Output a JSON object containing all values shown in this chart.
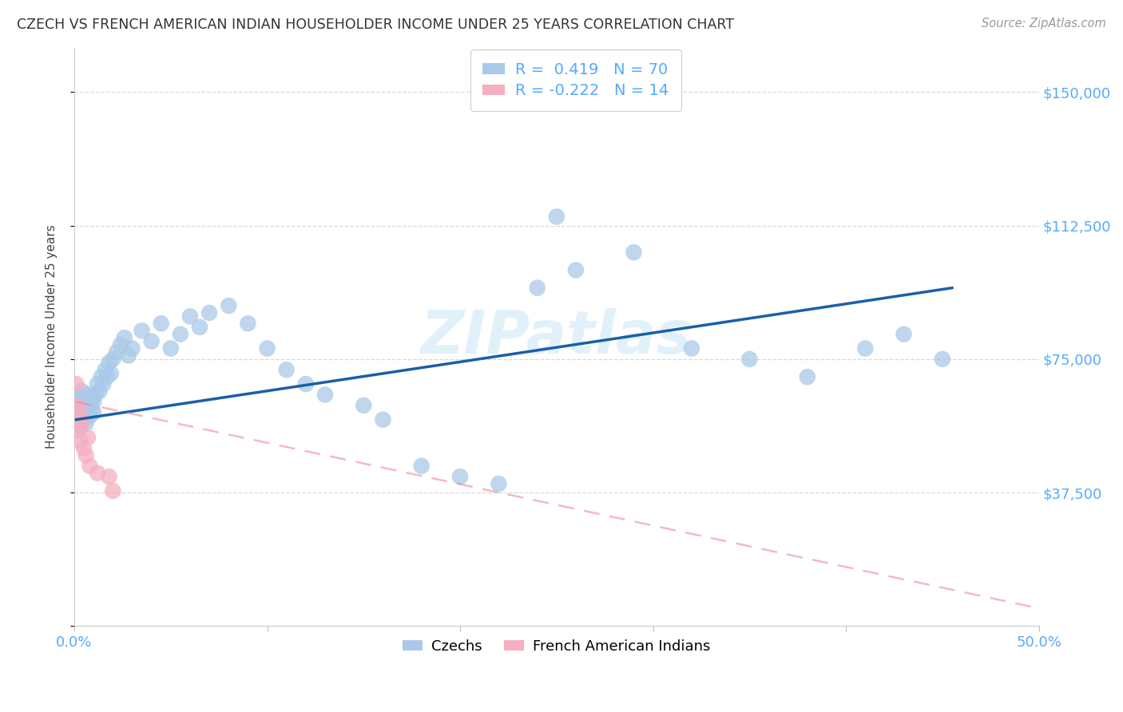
{
  "title": "CZECH VS FRENCH AMERICAN INDIAN HOUSEHOLDER INCOME UNDER 25 YEARS CORRELATION CHART",
  "source": "Source: ZipAtlas.com",
  "ylabel": "Householder Income Under 25 years",
  "xlim": [
    0.0,
    0.5
  ],
  "ylim": [
    0,
    162500
  ],
  "yticks": [
    0,
    37500,
    75000,
    112500,
    150000
  ],
  "ytick_labels": [
    "",
    "$37,500",
    "$75,000",
    "$112,500",
    "$150,000"
  ],
  "xticks": [
    0.0,
    0.1,
    0.2,
    0.3,
    0.4,
    0.5
  ],
  "xtick_labels": [
    "0.0%",
    "",
    "",
    "",
    "",
    "50.0%"
  ],
  "blue_R": 0.419,
  "blue_N": 70,
  "pink_R": -0.222,
  "pink_N": 14,
  "blue_color": "#aac9e8",
  "pink_color": "#f5afc0",
  "blue_line_color": "#1a5fa8",
  "pink_line_color": "#e8809a",
  "watermark": "ZIPatlas",
  "background_color": "#ffffff",
  "grid_color": "#d8d8d8",
  "czechs_x": [
    0.001,
    0.001,
    0.001,
    0.002,
    0.002,
    0.002,
    0.003,
    0.003,
    0.003,
    0.004,
    0.004,
    0.004,
    0.005,
    0.005,
    0.005,
    0.006,
    0.006,
    0.006,
    0.007,
    0.007,
    0.008,
    0.008,
    0.009,
    0.009,
    0.01,
    0.01,
    0.011,
    0.012,
    0.013,
    0.014,
    0.015,
    0.016,
    0.017,
    0.018,
    0.019,
    0.02,
    0.022,
    0.024,
    0.026,
    0.028,
    0.03,
    0.035,
    0.04,
    0.045,
    0.05,
    0.055,
    0.06,
    0.065,
    0.07,
    0.08,
    0.09,
    0.1,
    0.11,
    0.12,
    0.13,
    0.15,
    0.16,
    0.18,
    0.2,
    0.22,
    0.24,
    0.26,
    0.29,
    0.32,
    0.35,
    0.38,
    0.41,
    0.43,
    0.45,
    0.25
  ],
  "czechs_y": [
    58000,
    62000,
    65000,
    57000,
    60000,
    63000,
    56000,
    61000,
    64000,
    59000,
    62000,
    66000,
    58000,
    61000,
    63000,
    57000,
    60000,
    64000,
    62000,
    65000,
    59000,
    63000,
    61000,
    64000,
    60000,
    63000,
    65000,
    68000,
    66000,
    70000,
    68000,
    72000,
    70000,
    74000,
    71000,
    75000,
    77000,
    79000,
    81000,
    76000,
    78000,
    83000,
    80000,
    85000,
    78000,
    82000,
    87000,
    84000,
    88000,
    90000,
    85000,
    78000,
    72000,
    68000,
    65000,
    62000,
    58000,
    45000,
    42000,
    40000,
    95000,
    100000,
    105000,
    78000,
    75000,
    70000,
    78000,
    82000,
    75000,
    115000
  ],
  "french_x": [
    0.001,
    0.001,
    0.002,
    0.002,
    0.003,
    0.003,
    0.004,
    0.005,
    0.006,
    0.007,
    0.008,
    0.012,
    0.018,
    0.02
  ],
  "french_y": [
    68000,
    62000,
    58000,
    55000,
    60000,
    52000,
    57000,
    50000,
    48000,
    53000,
    45000,
    43000,
    42000,
    38000
  ],
  "blue_line_x": [
    0.001,
    0.455
  ],
  "blue_line_y": [
    58000,
    95000
  ],
  "pink_line_x": [
    0.001,
    0.5
  ],
  "pink_line_y": [
    63000,
    5000
  ]
}
